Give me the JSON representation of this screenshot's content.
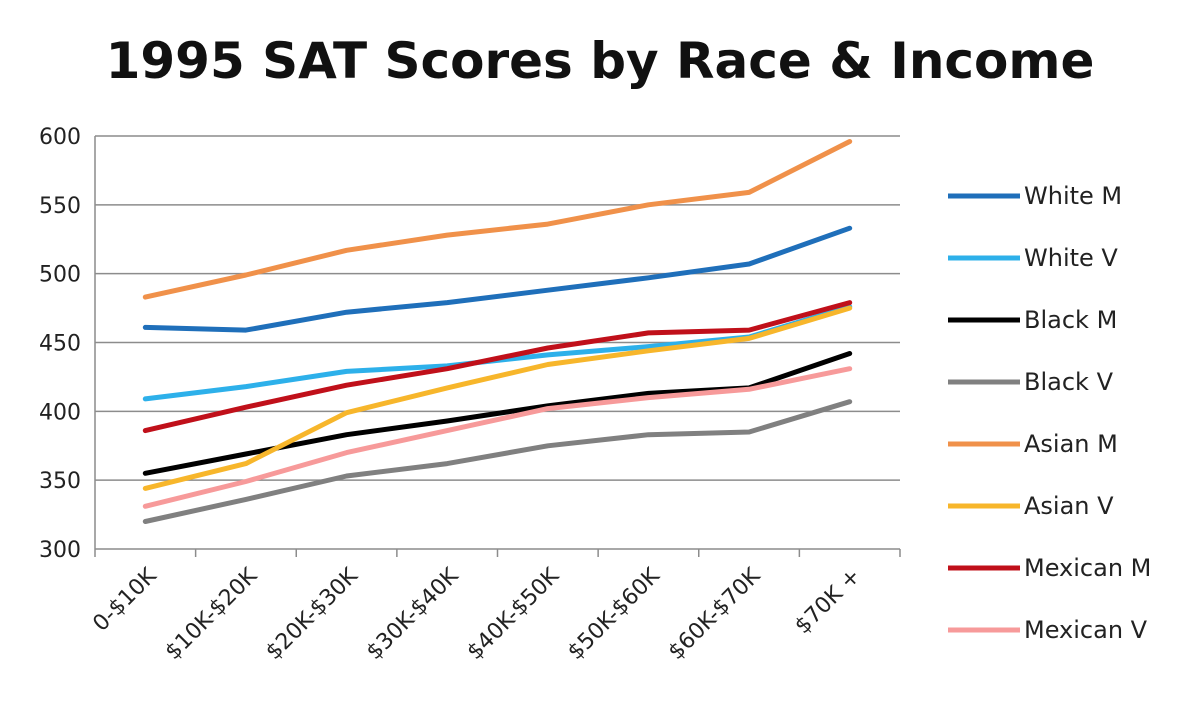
{
  "chart_data": {
    "type": "line",
    "title": "1995 SAT Scores by Race & Income",
    "categories": [
      "0-$10K",
      "$10K-$20K",
      "$20K-$30K",
      "$30K-$40K",
      "$40K-$50K",
      "$50K-$60K",
      "$60K-$70K",
      "$70K +"
    ],
    "ylim": [
      300,
      600
    ],
    "yticks": [
      300,
      350,
      400,
      450,
      500,
      550,
      600
    ],
    "grid": true,
    "legend_position": "right",
    "series": [
      {
        "name": "White M",
        "color": "#1f6fba",
        "values": [
          461,
          459,
          472,
          479,
          488,
          497,
          507,
          533
        ]
      },
      {
        "name": "White V",
        "color": "#2db0ea",
        "values": [
          409,
          418,
          429,
          433,
          441,
          447,
          454,
          476
        ]
      },
      {
        "name": "Black M",
        "color": "#000000",
        "values": [
          355,
          369,
          383,
          393,
          404,
          413,
          417,
          442
        ]
      },
      {
        "name": "Black V",
        "color": "#808080",
        "values": [
          320,
          336,
          353,
          362,
          375,
          383,
          385,
          407
        ]
      },
      {
        "name": "Asian M",
        "color": "#f0914a",
        "values": [
          483,
          499,
          517,
          528,
          536,
          550,
          559,
          596
        ]
      },
      {
        "name": "Asian V",
        "color": "#f7b62b",
        "values": [
          344,
          362,
          399,
          417,
          434,
          444,
          453,
          475
        ]
      },
      {
        "name": "Mexican M",
        "color": "#c0101a",
        "values": [
          386,
          403,
          419,
          431,
          446,
          457,
          459,
          479
        ]
      },
      {
        "name": "Mexican V",
        "color": "#f79a9a",
        "values": [
          331,
          349,
          370,
          386,
          402,
          410,
          416,
          431
        ]
      }
    ]
  }
}
